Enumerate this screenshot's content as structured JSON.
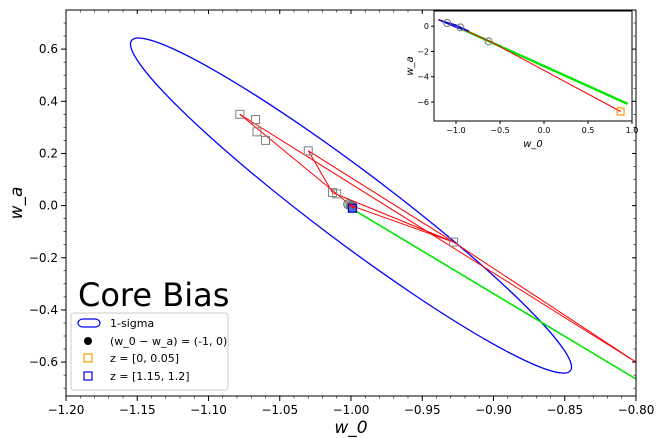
{
  "chart_data": [
    {
      "type": "line",
      "xlabel": "w_0",
      "ylabel": "w_a",
      "xlim": [
        -1.2,
        -0.8
      ],
      "ylim": [
        -0.73,
        0.75
      ],
      "x_ticks": [
        "−1.20",
        "−1.15",
        "−1.10",
        "−1.05",
        "−1.00",
        "−0.95",
        "−0.90",
        "−0.85",
        "−0.80"
      ],
      "x_tick_values": [
        -1.2,
        -1.15,
        -1.1,
        -1.05,
        -1.0,
        -0.95,
        -0.9,
        -0.85,
        -0.8
      ],
      "y_ticks": [
        "0.6",
        "0.4",
        "0.2",
        "0.0",
        "−0.2",
        "−0.4",
        "−0.6"
      ],
      "y_tick_values": [
        0.6,
        0.4,
        0.2,
        0.0,
        -0.2,
        -0.4,
        -0.6
      ],
      "annotation": "Core Bias",
      "ellipse_1sigma": {
        "center": [
          -1.0,
          0.0
        ],
        "color": "#0000ff",
        "extremes": [
          [
            -1.154,
            0.633
          ],
          [
            -0.846,
            -0.633
          ]
        ],
        "curve_points": [
          [
            -1.0,
            0.0
          ],
          [
            -1.01,
            0.34
          ],
          [
            -1.06,
            0.5
          ],
          [
            -1.13,
            0.62
          ],
          [
            -1.155,
            0.63
          ],
          [
            -1.15,
            0.6
          ],
          [
            -1.1,
            0.45
          ],
          [
            -1.04,
            0.26
          ],
          [
            -1.0,
            0.09
          ],
          [
            -0.96,
            -0.1
          ],
          [
            -0.9,
            -0.35
          ],
          [
            -0.86,
            -0.55
          ],
          [
            -0.847,
            -0.635
          ],
          [
            -0.85,
            -0.63
          ],
          [
            -0.9,
            -0.53
          ],
          [
            -0.96,
            -0.28
          ],
          [
            -0.995,
            -0.06
          ]
        ]
      },
      "series": [
        {
          "name": "1-sigma",
          "color": "#0000ff",
          "legend_marker": "ellipse"
        },
        {
          "name": "(w_0 − w_a) = (-1, 0)",
          "color": "#000000",
          "legend_marker": "circle"
        },
        {
          "name": "z = [0, 0.05]",
          "color": "#ff9900",
          "legend_marker": "square"
        },
        {
          "name": "z = [1.15, 1.2]",
          "color": "#0000cc",
          "legend_marker": "square"
        }
      ],
      "red_path": [
        [
          -1.078,
          0.35
        ],
        [
          -1.0,
          0.0
        ],
        [
          -0.928,
          -0.14
        ],
        [
          -1.013,
          0.05
        ],
        [
          -1.03,
          0.21
        ],
        [
          -0.928,
          -0.14
        ],
        [
          -0.8,
          -0.6
        ]
      ],
      "red_path_upper": [
        [
          -1.078,
          0.35
        ],
        [
          -0.8,
          -0.6
        ]
      ],
      "green_path": [
        [
          -1.0,
          -0.01
        ],
        [
          -0.8,
          -0.665
        ]
      ],
      "gray_squares": [
        [
          -1.078,
          0.35
        ],
        [
          -1.067,
          0.33
        ],
        [
          -1.066,
          0.283
        ],
        [
          -1.06,
          0.25
        ],
        [
          -1.03,
          0.21
        ],
        [
          -1.013,
          0.05
        ],
        [
          -1.01,
          0.045
        ],
        [
          -0.928,
          -0.14
        ]
      ],
      "gray_circles": [
        [
          -1.002,
          0.005
        ],
        [
          -1.0,
          0.0
        ],
        [
          -0.999,
          -0.004
        ]
      ],
      "blue_square": [
        -0.999,
        -0.01
      ],
      "red_points": [
        [
          -1.0,
          0.0
        ],
        [
          -0.998,
          -0.005
        ]
      ],
      "legend_location": "lower-left",
      "grid": false
    },
    {
      "type": "line",
      "inset": true,
      "xlabel": "w_0",
      "ylabel": "w_a",
      "xlim": [
        -1.25,
        1.0
      ],
      "ylim": [
        -7.5,
        1.2
      ],
      "x_ticks": [
        "−1.0",
        "−0.5",
        "0.0",
        "0.5",
        "1.0"
      ],
      "x_tick_values": [
        -1.0,
        -0.5,
        0.0,
        0.5,
        1.0
      ],
      "y_ticks": [
        "0",
        "−2",
        "−4",
        "−6"
      ],
      "y_tick_values": [
        0,
        -2,
        -4,
        -6
      ],
      "red_path": [
        [
          -1.2,
          0.55
        ],
        [
          -1.0,
          0.0
        ],
        [
          -0.6,
          -1.25
        ],
        [
          0.87,
          -6.75
        ]
      ],
      "green_path": [
        [
          -1.0,
          -0.01
        ],
        [
          0.95,
          -6.15
        ]
      ],
      "gray_circles": [
        [
          -1.1,
          0.25
        ],
        [
          -0.95,
          -0.1
        ],
        [
          -0.63,
          -1.2
        ]
      ],
      "orange_square": [
        0.87,
        -6.75
      ],
      "blue_ellipse_points": [
        [
          -1.2,
          0.5
        ],
        [
          -1.0,
          0.1
        ],
        [
          -0.85,
          -0.4
        ],
        [
          -1.0,
          -0.1
        ]
      ]
    }
  ]
}
